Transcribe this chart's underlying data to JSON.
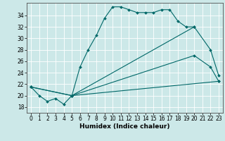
{
  "xlabel": "Humidex (Indice chaleur)",
  "background_color": "#cce8e8",
  "grid_color": "#ffffff",
  "line_color": "#006868",
  "xlim": [
    -0.5,
    23.5
  ],
  "ylim": [
    17.0,
    36.2
  ],
  "yticks": [
    18,
    20,
    22,
    24,
    26,
    28,
    30,
    32,
    34
  ],
  "xticks": [
    0,
    1,
    2,
    3,
    4,
    5,
    6,
    7,
    8,
    9,
    10,
    11,
    12,
    13,
    14,
    15,
    16,
    17,
    18,
    19,
    20,
    21,
    22,
    23
  ],
  "line1_x": [
    0,
    1,
    2,
    3,
    4,
    5,
    6,
    7,
    8,
    9,
    10,
    11,
    12,
    13,
    14,
    15,
    16,
    17,
    18,
    19,
    20
  ],
  "line1_y": [
    21.5,
    20.0,
    19.0,
    19.5,
    18.5,
    20.0,
    25.0,
    28.0,
    30.5,
    33.5,
    35.5,
    35.5,
    35.0,
    34.5,
    34.5,
    34.5,
    35.0,
    35.0,
    33.0,
    32.0,
    32.0
  ],
  "line2_x": [
    5,
    20,
    22,
    23
  ],
  "line2_y": [
    20.0,
    32.0,
    28.0,
    23.5
  ],
  "line3_x": [
    0,
    5,
    20,
    22,
    23
  ],
  "line3_y": [
    21.5,
    20.0,
    27.0,
    25.0,
    22.5
  ],
  "line4_x": [
    0,
    5,
    23
  ],
  "line4_y": [
    21.5,
    20.0,
    22.5
  ],
  "markersize": 2.0,
  "linewidth": 0.8,
  "tick_labelsize": 5.5,
  "xlabel_fontsize": 6.5
}
